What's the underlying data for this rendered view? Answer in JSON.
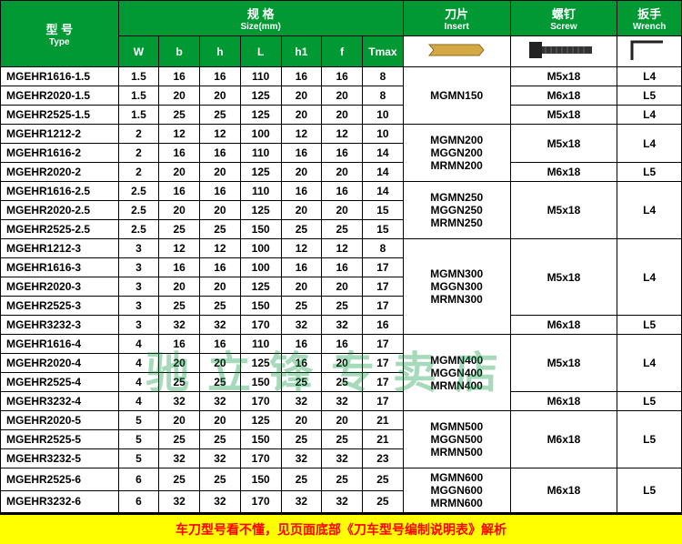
{
  "header": {
    "type_zh": "型 号",
    "type_en": "Type",
    "size_zh": "规 格",
    "size_en": "Size(mm)",
    "insert_zh": "刀片",
    "insert_en": "Insert",
    "screw_zh": "螺钉",
    "screw_en": "Screw",
    "wrench_zh": "扳手",
    "wrench_en": "Wrench",
    "cols": [
      "W",
      "b",
      "h",
      "L",
      "h1",
      "f",
      "Tmax"
    ]
  },
  "colors": {
    "header_bg": "#009933",
    "header_fg": "#ffffff",
    "row_bg": "#ffffff",
    "border": "#000000",
    "footer_bg": "#ffff00",
    "footer_fg": "#ff0000",
    "watermark": "rgba(0,150,60,0.35)"
  },
  "rows": [
    {
      "type": "MGEHR1616-1.5",
      "W": "1.5",
      "b": "16",
      "h": "16",
      "L": "110",
      "h1": "16",
      "f": "16",
      "Tmax": "8"
    },
    {
      "type": "MGEHR2020-1.5",
      "W": "1.5",
      "b": "20",
      "h": "20",
      "L": "125",
      "h1": "20",
      "f": "20",
      "Tmax": "8"
    },
    {
      "type": "MGEHR2525-1.5",
      "W": "1.5",
      "b": "25",
      "h": "25",
      "L": "125",
      "h1": "20",
      "f": "20",
      "Tmax": "10"
    },
    {
      "type": "MGEHR1212-2",
      "W": "2",
      "b": "12",
      "h": "12",
      "L": "100",
      "h1": "12",
      "f": "12",
      "Tmax": "10"
    },
    {
      "type": "MGEHR1616-2",
      "W": "2",
      "b": "16",
      "h": "16",
      "L": "110",
      "h1": "16",
      "f": "16",
      "Tmax": "14"
    },
    {
      "type": "MGEHR2020-2",
      "W": "2",
      "b": "20",
      "h": "20",
      "L": "125",
      "h1": "20",
      "f": "20",
      "Tmax": "14"
    },
    {
      "type": "MGEHR1616-2.5",
      "W": "2.5",
      "b": "16",
      "h": "16",
      "L": "110",
      "h1": "16",
      "f": "16",
      "Tmax": "14"
    },
    {
      "type": "MGEHR2020-2.5",
      "W": "2.5",
      "b": "20",
      "h": "20",
      "L": "125",
      "h1": "20",
      "f": "20",
      "Tmax": "15"
    },
    {
      "type": "MGEHR2525-2.5",
      "W": "2.5",
      "b": "25",
      "h": "25",
      "L": "150",
      "h1": "25",
      "f": "25",
      "Tmax": "15"
    },
    {
      "type": "MGEHR1212-3",
      "W": "3",
      "b": "12",
      "h": "12",
      "L": "100",
      "h1": "12",
      "f": "12",
      "Tmax": "8"
    },
    {
      "type": "MGEHR1616-3",
      "W": "3",
      "b": "16",
      "h": "16",
      "L": "100",
      "h1": "16",
      "f": "16",
      "Tmax": "17"
    },
    {
      "type": "MGEHR2020-3",
      "W": "3",
      "b": "20",
      "h": "20",
      "L": "125",
      "h1": "20",
      "f": "20",
      "Tmax": "17"
    },
    {
      "type": "MGEHR2525-3",
      "W": "3",
      "b": "25",
      "h": "25",
      "L": "150",
      "h1": "25",
      "f": "25",
      "Tmax": "17"
    },
    {
      "type": "MGEHR3232-3",
      "W": "3",
      "b": "32",
      "h": "32",
      "L": "170",
      "h1": "32",
      "f": "32",
      "Tmax": "16"
    },
    {
      "type": "MGEHR1616-4",
      "W": "4",
      "b": "16",
      "h": "16",
      "L": "110",
      "h1": "16",
      "f": "16",
      "Tmax": "17"
    },
    {
      "type": "MGEHR2020-4",
      "W": "4",
      "b": "20",
      "h": "20",
      "L": "125",
      "h1": "16",
      "f": "20",
      "Tmax": "17"
    },
    {
      "type": "MGEHR2525-4",
      "W": "4",
      "b": "25",
      "h": "25",
      "L": "150",
      "h1": "25",
      "f": "25",
      "Tmax": "17"
    },
    {
      "type": "MGEHR3232-4",
      "W": "4",
      "b": "32",
      "h": "32",
      "L": "170",
      "h1": "32",
      "f": "32",
      "Tmax": "17"
    },
    {
      "type": "MGEHR2020-5",
      "W": "5",
      "b": "20",
      "h": "20",
      "L": "125",
      "h1": "20",
      "f": "20",
      "Tmax": "21"
    },
    {
      "type": "MGEHR2525-5",
      "W": "5",
      "b": "25",
      "h": "25",
      "L": "150",
      "h1": "25",
      "f": "25",
      "Tmax": "21"
    },
    {
      "type": "MGEHR3232-5",
      "W": "5",
      "b": "32",
      "h": "32",
      "L": "170",
      "h1": "32",
      "f": "32",
      "Tmax": "23"
    },
    {
      "type": "MGEHR2525-6",
      "W": "6",
      "b": "25",
      "h": "25",
      "L": "150",
      "h1": "25",
      "f": "25",
      "Tmax": "25"
    },
    {
      "type": "MGEHR3232-6",
      "W": "6",
      "b": "32",
      "h": "32",
      "L": "170",
      "h1": "32",
      "f": "32",
      "Tmax": "25"
    }
  ],
  "inserts": [
    {
      "start": 0,
      "span": 3,
      "lines": [
        "MGMN150"
      ]
    },
    {
      "start": 3,
      "span": 3,
      "lines": [
        "MGMN200",
        "MGGN200",
        "MRMN200"
      ]
    },
    {
      "start": 6,
      "span": 3,
      "lines": [
        "MGMN250",
        "MGGN250",
        "MRMN250"
      ]
    },
    {
      "start": 9,
      "span": 5,
      "lines": [
        "MGMN300",
        "MGGN300",
        "MRMN300"
      ]
    },
    {
      "start": 14,
      "span": 4,
      "lines": [
        "MGMN400",
        "MGGN400",
        "MRMN400"
      ]
    },
    {
      "start": 18,
      "span": 3,
      "lines": [
        "MGMN500",
        "MGGN500",
        "MRMN500"
      ]
    },
    {
      "start": 21,
      "span": 2,
      "lines": [
        "MGMN600",
        "MGGN600",
        "MRMN600"
      ]
    }
  ],
  "screws": [
    {
      "start": 0,
      "span": 1,
      "v": "M5x18"
    },
    {
      "start": 1,
      "span": 1,
      "v": "M6x18"
    },
    {
      "start": 2,
      "span": 1,
      "v": "M5x18"
    },
    {
      "start": 3,
      "span": 2,
      "v": "M5x18"
    },
    {
      "start": 5,
      "span": 1,
      "v": "M6x18"
    },
    {
      "start": 6,
      "span": 3,
      "v": "M5x18"
    },
    {
      "start": 9,
      "span": 4,
      "v": "M5x18"
    },
    {
      "start": 13,
      "span": 1,
      "v": "M6x18"
    },
    {
      "start": 14,
      "span": 3,
      "v": "M5x18"
    },
    {
      "start": 17,
      "span": 1,
      "v": "M6x18"
    },
    {
      "start": 18,
      "span": 3,
      "v": "M6x18"
    },
    {
      "start": 21,
      "span": 2,
      "v": "M6x18"
    }
  ],
  "wrenches": [
    {
      "start": 0,
      "span": 1,
      "v": "L4"
    },
    {
      "start": 1,
      "span": 1,
      "v": "L5"
    },
    {
      "start": 2,
      "span": 1,
      "v": "L4"
    },
    {
      "start": 3,
      "span": 2,
      "v": "L4"
    },
    {
      "start": 5,
      "span": 1,
      "v": "L5"
    },
    {
      "start": 6,
      "span": 3,
      "v": "L4"
    },
    {
      "start": 9,
      "span": 4,
      "v": "L4"
    },
    {
      "start": 13,
      "span": 1,
      "v": "L5"
    },
    {
      "start": 14,
      "span": 3,
      "v": "L4"
    },
    {
      "start": 17,
      "span": 1,
      "v": "L5"
    },
    {
      "start": 18,
      "span": 3,
      "v": "L5"
    },
    {
      "start": 21,
      "span": 2,
      "v": "L5"
    }
  ],
  "footer": "车刀型号看不懂，见页面底部《刀车型号编制说明表》解析",
  "watermark": "驰立锋专卖店"
}
